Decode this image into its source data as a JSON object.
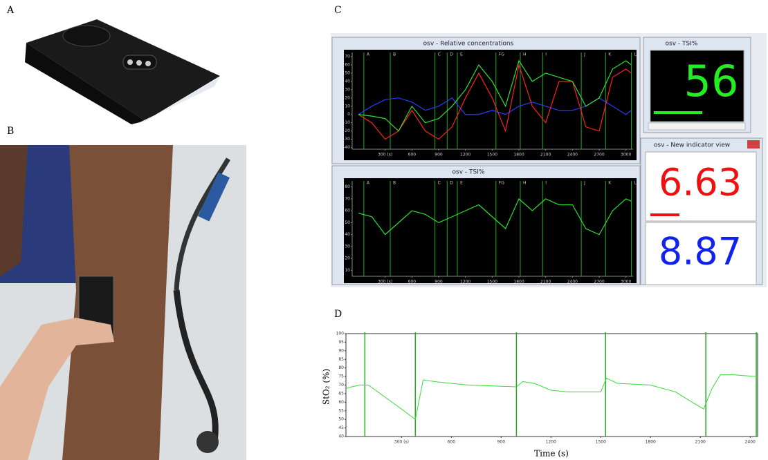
{
  "panels": {
    "a": "A",
    "b": "B",
    "c": "C",
    "d": "D"
  },
  "window_relative": {
    "title": "osv - Relative concentrations",
    "plot": {
      "xlim": [
        -70,
        3080
      ],
      "ylim": [
        -42,
        75
      ],
      "xticks": [
        {
          "value": 300,
          "label": "300 (s)"
        },
        600,
        900,
        1200,
        1500,
        1800,
        2100,
        2400,
        2700,
        3000
      ],
      "yticks": [
        70,
        60,
        50,
        40,
        30,
        20,
        10,
        0,
        -10,
        -20,
        -30,
        -40
      ],
      "events": [
        {
          "label": "A",
          "time": 61
        },
        {
          "label": "B",
          "time": 357
        },
        {
          "label": "C",
          "time": 858
        },
        {
          "label": "D",
          "time": 995
        },
        {
          "label": "E",
          "time": 1109
        },
        {
          "label": "FG",
          "time": 1542
        },
        {
          "label": "H",
          "time": 1815
        },
        {
          "label": "I",
          "time": 2066
        },
        {
          "label": "J",
          "time": 2499
        },
        {
          "label": "K",
          "time": 2772
        },
        {
          "label": "L",
          "time": 3061
        }
      ],
      "x": [
        0,
        150,
        300,
        450,
        600,
        750,
        900,
        1050,
        1200,
        1350,
        1500,
        1650,
        1800,
        1950,
        2100,
        2250,
        2400,
        2550,
        2700,
        2850,
        3000,
        3060
      ],
      "series": [
        {
          "color": "#2040ff",
          "values": [
            0,
            10,
            18,
            20,
            15,
            5,
            10,
            20,
            0,
            0,
            5,
            0,
            10,
            15,
            10,
            5,
            5,
            10,
            20,
            10,
            0,
            5
          ]
        },
        {
          "color": "#ff2020",
          "values": [
            0,
            -10,
            -30,
            -20,
            5,
            -20,
            -30,
            -15,
            20,
            50,
            20,
            -20,
            60,
            10,
            -10,
            40,
            40,
            -15,
            -20,
            45,
            55,
            50
          ]
        },
        {
          "color": "#30e030",
          "values": [
            0,
            -2,
            -5,
            -20,
            10,
            -10,
            -5,
            10,
            30,
            60,
            40,
            10,
            65,
            40,
            50,
            45,
            40,
            10,
            20,
            55,
            65,
            60
          ]
        }
      ]
    }
  },
  "window_tsi": {
    "title": "osv - TSI%",
    "plot": {
      "xlim": [
        -70,
        3080
      ],
      "ylim": [
        5,
        85
      ],
      "xticks": [
        {
          "value": 300,
          "label": "300 (s)"
        },
        600,
        900,
        1200,
        1500,
        1800,
        2100,
        2400,
        2700,
        3000
      ],
      "yticks": [
        80,
        70,
        60,
        50,
        40,
        30,
        20,
        10
      ],
      "events": [
        {
          "label": "A",
          "time": 61
        },
        {
          "label": "B",
          "time": 357
        },
        {
          "label": "C",
          "time": 858
        },
        {
          "label": "D",
          "time": 995
        },
        {
          "label": "E",
          "time": 1109
        },
        {
          "label": "FG",
          "time": 1542
        },
        {
          "label": "H",
          "time": 1815
        },
        {
          "label": "I",
          "time": 2066
        },
        {
          "label": "J",
          "time": 2499
        },
        {
          "label": "K",
          "time": 2772
        },
        {
          "label": "L",
          "time": 3061
        }
      ],
      "x": [
        0,
        150,
        300,
        450,
        600,
        750,
        900,
        1050,
        1200,
        1350,
        1500,
        1650,
        1800,
        1950,
        2100,
        2250,
        2400,
        2550,
        2700,
        2850,
        3000,
        3060
      ],
      "series": [
        {
          "color": "#30e030",
          "values": [
            58,
            55,
            40,
            50,
            60,
            57,
            50,
            55,
            60,
            65,
            55,
            45,
            70,
            60,
            70,
            65,
            65,
            45,
            40,
            60,
            70,
            68
          ]
        }
      ]
    }
  },
  "window_tsi_value": {
    "title": "osv - TSI%",
    "value": "56"
  },
  "window_indicator": {
    "title": "osv - New indicator view",
    "red_value": "6.63",
    "blue_value": "8.87"
  },
  "chart_d": {
    "xlabel": "Time (s)",
    "ylabel": "StO₂ (%)",
    "plot": {
      "xlim": [
        -35,
        2445
      ],
      "ylim": [
        40,
        100
      ],
      "xticks": [
        {
          "value": 300,
          "label": "300 (s)"
        },
        600,
        900,
        1200,
        1500,
        1800,
        2100,
        2400
      ],
      "yticks": [
        100,
        95,
        90,
        85,
        80,
        75,
        70,
        65,
        60,
        55,
        50,
        45,
        40
      ],
      "event_times": [
        79,
        383,
        992,
        1529,
        2133,
        2437
      ],
      "x": [
        -35,
        0,
        50,
        100,
        200,
        300,
        383,
        430,
        500,
        700,
        992,
        1030,
        1100,
        1200,
        1300,
        1500,
        1535,
        1600,
        1800,
        1950,
        2050,
        2120,
        2170,
        2220,
        2300,
        2437
      ],
      "series": [
        {
          "color": "#33dd33",
          "values": [
            68,
            69,
            70,
            70,
            63,
            56,
            50,
            73,
            72,
            70,
            69,
            72,
            71,
            67,
            66,
            66,
            74,
            71,
            70,
            66,
            60,
            56,
            68,
            76,
            76,
            75
          ]
        }
      ]
    }
  }
}
